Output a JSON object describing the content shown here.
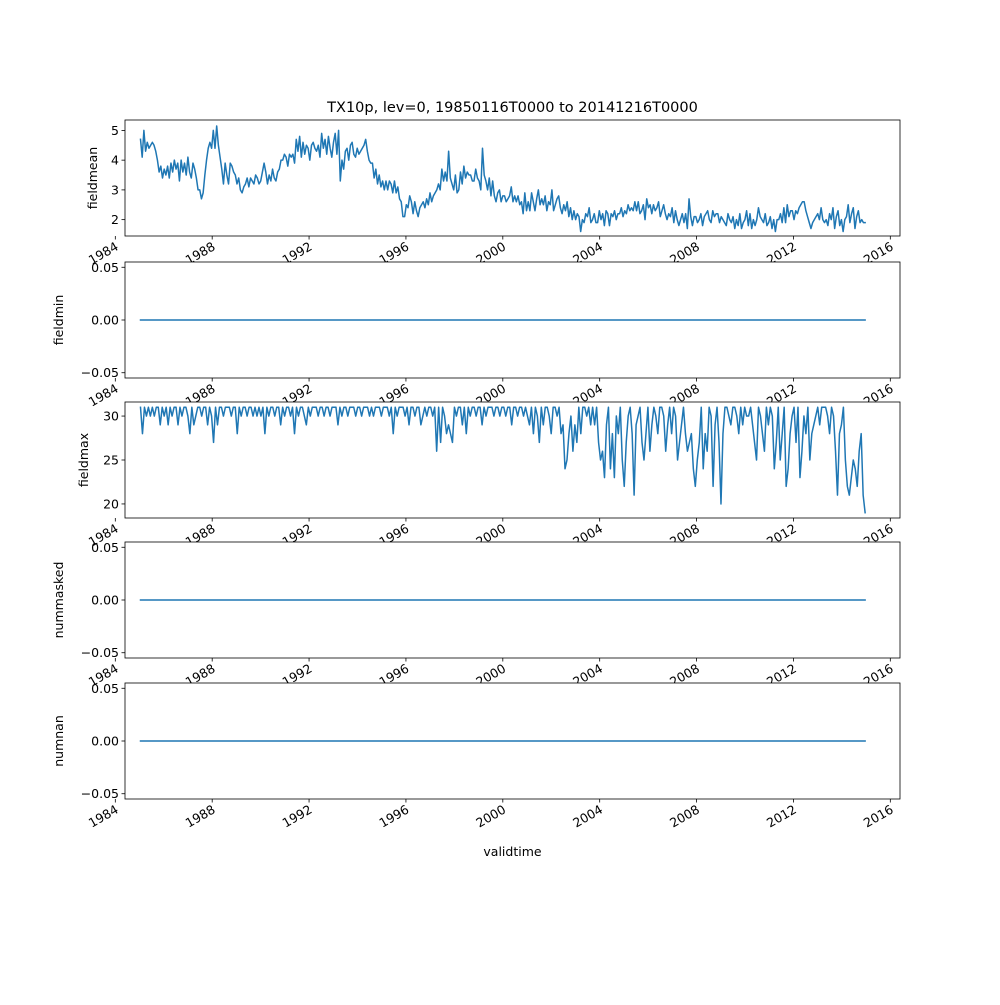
{
  "figure": {
    "title": "TX10p, lev=0, 19850116T0000 to 20141216T0000"
  },
  "chart_data": [
    {
      "type": "line",
      "title": "TX10p, lev=0, 19850116T0000 to 20141216T0000",
      "xlabel": "",
      "ylabel": "fieldmean",
      "xlim": [
        1984.4,
        2016.4
      ],
      "ylim": [
        1.45,
        5.35
      ],
      "x_ticks": [
        1984,
        1988,
        1992,
        1996,
        2000,
        2004,
        2008,
        2012,
        2016
      ],
      "y_ticks": [
        2,
        3,
        4,
        5
      ],
      "x_start": 1985.04,
      "x_end": 2014.96,
      "color": "#1f77b4",
      "grid": false,
      "values": [
        4.7,
        4.1,
        5.0,
        4.3,
        4.6,
        4.4,
        4.5,
        4.6,
        4.5,
        4.3,
        4.0,
        3.6,
        3.8,
        3.4,
        3.7,
        3.5,
        3.8,
        3.4,
        3.9,
        3.6,
        4.0,
        3.7,
        3.9,
        3.3,
        4.0,
        3.6,
        3.9,
        3.5,
        4.1,
        3.6,
        3.4,
        3.9,
        3.7,
        3.4,
        3.0,
        3.0,
        2.7,
        2.9,
        3.5,
        4.0,
        4.4,
        4.6,
        4.4,
        5.0,
        4.4,
        5.15,
        4.5,
        4.1,
        3.7,
        3.2,
        3.9,
        3.5,
        3.2,
        3.9,
        3.8,
        3.6,
        3.5,
        3.2,
        3.4,
        3.0,
        2.9,
        3.1,
        3.2,
        3.4,
        3.1,
        3.4,
        3.3,
        3.2,
        3.5,
        3.4,
        3.2,
        3.3,
        3.6,
        3.9,
        3.6,
        3.2,
        3.5,
        3.3,
        3.7,
        3.4,
        3.3,
        3.6,
        3.7,
        4.0,
        4.0,
        4.2,
        4.1,
        3.8,
        4.2,
        4.1,
        4.2,
        3.9,
        4.7,
        4.3,
        4.8,
        4.1,
        4.6,
        4.2,
        4.5,
        4.4,
        4.0,
        4.5,
        4.6,
        4.4,
        4.3,
        4.5,
        4.1,
        4.9,
        4.4,
        4.7,
        4.2,
        4.8,
        4.4,
        4.1,
        4.6,
        4.9,
        4.2,
        5.0,
        3.3,
        4.0,
        3.7,
        4.3,
        4.4,
        4.0,
        4.5,
        4.6,
        4.2,
        4.1,
        4.4,
        4.2,
        4.3,
        4.4,
        4.5,
        4.7,
        4.3,
        4.0,
        3.9,
        3.9,
        3.4,
        3.7,
        3.2,
        3.5,
        3.1,
        3.3,
        3.0,
        3.3,
        3.0,
        3.3,
        3.2,
        2.9,
        3.3,
        2.9,
        3.1,
        2.7,
        2.6,
        2.1,
        2.1,
        2.5,
        2.4,
        2.8,
        2.6,
        2.2,
        2.6,
        2.3,
        2.1,
        2.4,
        2.5,
        2.6,
        2.4,
        2.7,
        2.5,
        2.9,
        2.6,
        2.8,
        2.9,
        3.0,
        3.2,
        3.0,
        3.7,
        3.3,
        3.6,
        3.3,
        4.3,
        3.4,
        3.2,
        3.0,
        3.5,
        2.9,
        3.0,
        3.6,
        3.2,
        3.8,
        3.4,
        3.6,
        3.5,
        3.5,
        3.3,
        3.3,
        3.7,
        3.4,
        3.3,
        3.0,
        4.4,
        3.5,
        3.3,
        3.0,
        3.4,
        2.8,
        3.3,
        2.8,
        2.6,
        2.9,
        3.0,
        2.6,
        2.8,
        2.8,
        2.6,
        2.7,
        2.8,
        3.1,
        2.6,
        2.8,
        2.6,
        2.8,
        2.5,
        2.6,
        2.2,
        2.9,
        2.3,
        2.6,
        2.3,
        2.9,
        2.6,
        2.3,
        2.7,
        3.0,
        2.5,
        2.7,
        2.5,
        2.8,
        2.3,
        2.6,
        2.5,
        3.0,
        2.3,
        2.5,
        2.7,
        2.8,
        2.4,
        2.2,
        2.5,
        2.3,
        2.6,
        2.1,
        2.4,
        2.0,
        2.3,
        2.0,
        2.2,
        2.1,
        1.6,
        2.0,
        1.9,
        2.2,
        2.1,
        2.4,
        1.9,
        2.0,
        2.2,
        1.9,
        1.9,
        2.3,
        2.0,
        2.2,
        1.8,
        2.3,
        2.2,
        1.8,
        2.2,
        2.1,
        2.3,
        2.0,
        2.2,
        2.2,
        2.4,
        2.1,
        2.3,
        2.2,
        2.5,
        2.3,
        2.4,
        2.3,
        2.6,
        2.3,
        2.6,
        2.2,
        2.3,
        2.5,
        2.0,
        2.7,
        2.4,
        2.5,
        2.2,
        2.5,
        2.3,
        2.4,
        2.6,
        2.1,
        2.3,
        2.5,
        2.2,
        2.0,
        2.2,
        2.1,
        2.4,
        1.9,
        2.3,
        2.0,
        1.8,
        2.0,
        2.2,
        1.9,
        2.2,
        1.7,
        2.7,
        2.1,
        1.8,
        2.1,
        2.1,
        1.9,
        2.0,
        2.2,
        1.8,
        2.1,
        2.2,
        2.3,
        2.0,
        1.9,
        2.3,
        2.1,
        2.2,
        2.2,
        1.9,
        2.1,
        2.0,
        1.9,
        1.8,
        2.2,
        2.0,
        1.9,
        2.1,
        1.7,
        2.0,
        1.8,
        2.2,
        1.7,
        1.9,
        2.0,
        2.3,
        1.8,
        2.2,
        1.7,
        2.0,
        1.8,
        2.0,
        2.4,
        2.1,
        2.0,
        1.9,
        2.2,
        1.8,
        1.9,
        2.1,
        1.7,
        2.0,
        1.6,
        2.0,
        2.0,
        2.2,
        1.9,
        2.4,
        1.9,
        2.5,
        2.1,
        2.3,
        2.3,
        2.0,
        2.3,
        2.2,
        2.4,
        2.5,
        2.6,
        2.6,
        2.3,
        2.1,
        1.9,
        1.7,
        1.9,
        2.0,
        2.1,
        2.2,
        2.0,
        2.4,
        2.0,
        1.9,
        2.0,
        1.8,
        2.2,
        2.0,
        2.4,
        1.7,
        2.1,
        2.3,
        1.8,
        2.0,
        1.6,
        2.0,
        2.1,
        2.5,
        1.9,
        2.2,
        2.4,
        1.7,
        2.1,
        2.3,
        1.9,
        2.0,
        1.9,
        1.9
      ]
    },
    {
      "type": "line",
      "xlabel": "",
      "ylabel": "fieldmin",
      "xlim": [
        1984.4,
        2016.4
      ],
      "ylim": [
        -0.055,
        0.055
      ],
      "y_ticks": [
        -0.05,
        0.0,
        0.05
      ],
      "y_tick_labels": [
        "−0.05",
        "0.00",
        "0.05"
      ],
      "x_ticks": [
        1984,
        1988,
        1992,
        1996,
        2000,
        2004,
        2008,
        2012,
        2016
      ],
      "x_start": 1985.04,
      "x_end": 2014.96,
      "color": "#1f77b4",
      "grid": false,
      "constant_value": 0.0
    },
    {
      "type": "line",
      "xlabel": "",
      "ylabel": "fieldmax",
      "xlim": [
        1984.4,
        2016.4
      ],
      "ylim": [
        18.4,
        31.6
      ],
      "x_ticks": [
        1984,
        1988,
        1992,
        1996,
        2000,
        2004,
        2008,
        2012,
        2016
      ],
      "y_ticks": [
        20,
        25,
        30
      ],
      "x_start": 1985.04,
      "x_end": 2014.96,
      "color": "#1f77b4",
      "grid": false,
      "values": [
        31,
        28,
        31,
        30,
        31,
        30,
        31,
        30,
        31,
        31,
        29,
        31,
        30,
        31,
        29,
        31,
        30,
        31,
        31,
        29,
        31,
        30,
        31,
        31,
        30,
        28,
        31,
        29,
        30,
        31,
        31,
        30,
        31,
        31,
        29,
        31,
        30,
        27,
        31,
        29,
        31,
        31,
        30,
        31,
        31,
        31,
        30,
        31,
        31,
        28,
        31,
        30,
        31,
        31,
        30,
        31,
        31,
        30,
        31,
        30,
        31,
        30,
        31,
        28,
        31,
        30,
        31,
        31,
        30,
        31,
        31,
        29,
        31,
        30,
        31,
        31,
        30,
        31,
        28,
        31,
        30,
        31,
        31,
        30,
        29,
        31,
        30,
        31,
        31,
        31,
        30,
        31,
        31,
        30,
        31,
        31,
        30,
        31,
        31,
        31,
        29,
        31,
        30,
        31,
        31,
        30,
        31,
        31,
        31,
        30,
        31,
        31,
        30,
        31,
        31,
        31,
        30,
        31,
        30,
        31,
        31,
        31,
        30,
        31,
        31,
        31,
        30,
        31,
        28,
        31,
        30,
        31,
        31,
        31,
        30,
        31,
        29,
        31,
        31,
        30,
        31,
        31,
        29,
        30,
        31,
        30,
        31,
        31,
        30,
        31,
        26,
        31,
        27,
        31,
        30,
        28,
        29,
        28,
        27,
        31,
        30,
        31,
        31,
        29,
        31,
        28,
        31,
        30,
        31,
        31,
        30,
        31,
        31,
        29,
        31,
        30,
        31,
        31,
        31,
        30,
        31,
        31,
        30,
        31,
        31,
        30,
        31,
        31,
        29,
        31,
        31,
        30,
        31,
        31,
        30,
        31,
        30,
        29,
        31,
        28,
        31,
        30,
        27,
        31,
        29,
        31,
        31,
        30,
        28,
        31,
        31,
        30,
        31,
        28,
        29,
        24,
        25,
        28,
        30,
        26,
        29,
        27,
        31,
        28,
        31,
        31,
        30,
        31,
        29,
        31,
        29,
        31,
        27,
        25,
        26,
        23,
        29,
        31,
        24,
        28,
        23,
        30,
        28,
        31,
        25,
        22,
        27,
        30,
        31,
        28,
        21,
        29,
        30,
        31,
        27,
        25,
        28,
        31,
        26,
        29,
        31,
        30,
        28,
        31,
        31,
        30,
        26,
        29,
        31,
        28,
        31,
        30,
        25,
        27,
        29,
        31,
        28,
        26,
        27,
        28,
        24,
        22,
        25,
        27,
        31,
        24,
        28,
        26,
        31,
        30,
        22,
        29,
        31,
        27,
        20,
        28,
        31,
        31,
        30,
        29,
        31,
        31,
        30,
        28,
        31,
        29,
        31,
        30,
        30,
        31,
        29,
        27,
        25,
        31,
        30,
        28,
        26,
        31,
        29,
        31,
        30,
        24,
        27,
        31,
        25,
        28,
        31,
        22,
        24,
        28,
        30,
        31,
        27,
        31,
        23,
        26,
        30,
        28,
        31,
        25,
        28,
        29,
        30,
        31,
        29,
        31,
        31,
        31,
        30,
        28,
        31,
        30,
        26,
        21,
        28,
        29,
        31,
        25,
        22,
        21,
        23,
        25,
        24,
        22,
        26,
        28,
        21,
        19
      ]
    },
    {
      "type": "line",
      "xlabel": "",
      "ylabel": "nummasked",
      "xlim": [
        1984.4,
        2016.4
      ],
      "ylim": [
        -0.055,
        0.055
      ],
      "y_ticks": [
        -0.05,
        0.0,
        0.05
      ],
      "y_tick_labels": [
        "−0.05",
        "0.00",
        "0.05"
      ],
      "x_ticks": [
        1984,
        1988,
        1992,
        1996,
        2000,
        2004,
        2008,
        2012,
        2016
      ],
      "x_start": 1985.04,
      "x_end": 2014.96,
      "color": "#1f77b4",
      "grid": false,
      "constant_value": 0.0
    },
    {
      "type": "line",
      "xlabel": "validtime",
      "ylabel": "numnan",
      "xlim": [
        1984.4,
        2016.4
      ],
      "ylim": [
        -0.055,
        0.055
      ],
      "y_ticks": [
        -0.05,
        0.0,
        0.05
      ],
      "y_tick_labels": [
        "−0.05",
        "0.00",
        "0.05"
      ],
      "x_ticks": [
        1984,
        1988,
        1992,
        1996,
        2000,
        2004,
        2008,
        2012,
        2016
      ],
      "x_start": 1985.04,
      "x_end": 2014.96,
      "color": "#1f77b4",
      "grid": false,
      "constant_value": 0.0
    }
  ]
}
